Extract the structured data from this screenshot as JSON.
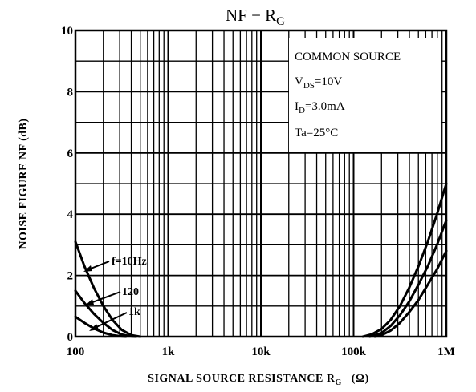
{
  "chart_data": {
    "type": "line",
    "title": {
      "main": "NF − R",
      "sub": "G"
    },
    "xlabel": {
      "main": "SIGNAL SOURCE RESISTANCE  R",
      "sub": "G",
      "unit": "(Ω)"
    },
    "ylabel": "NOISE FIGURE  NF  (dB)",
    "x_scale": "log",
    "xlim": [
      100,
      1000000
    ],
    "ylim": [
      0,
      10
    ],
    "x_ticks": [
      {
        "value": 100,
        "label": "100"
      },
      {
        "value": 1000,
        "label": "1k"
      },
      {
        "value": 10000,
        "label": "10k"
      },
      {
        "value": 100000,
        "label": "100k"
      },
      {
        "value": 1000000,
        "label": "1M"
      }
    ],
    "y_ticks": [
      {
        "value": 0,
        "label": "0"
      },
      {
        "value": 2,
        "label": "2"
      },
      {
        "value": 4,
        "label": "4"
      },
      {
        "value": 6,
        "label": "6"
      },
      {
        "value": 8,
        "label": "8"
      },
      {
        "value": 10,
        "label": "10"
      }
    ],
    "grid": true,
    "conditions": {
      "line1": "COMMON SOURCE",
      "vds_main": "V",
      "vds_sub": "DS",
      "vds_val": "=10V",
      "id_main": "I",
      "id_sub": "D",
      "id_val": "=3.0mA",
      "ta": "Ta=25°C"
    },
    "series": [
      {
        "name": "f=10Hz",
        "label": "f=10Hz",
        "low_r": {
          "x": [
            100,
            125,
            158,
            200,
            250,
            316,
            400,
            500
          ],
          "y": [
            3.1,
            2.3,
            1.6,
            1.0,
            0.55,
            0.22,
            0.05,
            0
          ]
        },
        "high_r": {
          "x": [
            126000,
            158000,
            200000,
            251000,
            316000,
            398000,
            501000,
            631000,
            794000,
            1000000
          ],
          "y": [
            0,
            0.08,
            0.25,
            0.55,
            1.0,
            1.6,
            2.3,
            3.1,
            4.0,
            5.0
          ]
        }
      },
      {
        "name": "120",
        "label": "120",
        "low_r": {
          "x": [
            100,
            125,
            158,
            200,
            250,
            316,
            400,
            450
          ],
          "y": [
            1.5,
            1.1,
            0.75,
            0.45,
            0.22,
            0.07,
            0.01,
            0
          ]
        },
        "high_r": {
          "x": [
            150000,
            200000,
            251000,
            316000,
            398000,
            501000,
            631000,
            794000,
            1000000
          ],
          "y": [
            0,
            0.12,
            0.35,
            0.7,
            1.15,
            1.7,
            2.3,
            3.0,
            3.8
          ]
        }
      },
      {
        "name": "1k",
        "label": "1k",
        "low_r": {
          "x": [
            100,
            125,
            158,
            200,
            250,
            316,
            350
          ],
          "y": [
            0.65,
            0.45,
            0.27,
            0.13,
            0.05,
            0.01,
            0
          ]
        },
        "high_r": {
          "x": [
            170000,
            200000,
            251000,
            316000,
            398000,
            501000,
            631000,
            794000,
            1000000
          ],
          "y": [
            0,
            0.05,
            0.2,
            0.45,
            0.8,
            1.2,
            1.7,
            2.2,
            2.8
          ]
        }
      }
    ]
  }
}
